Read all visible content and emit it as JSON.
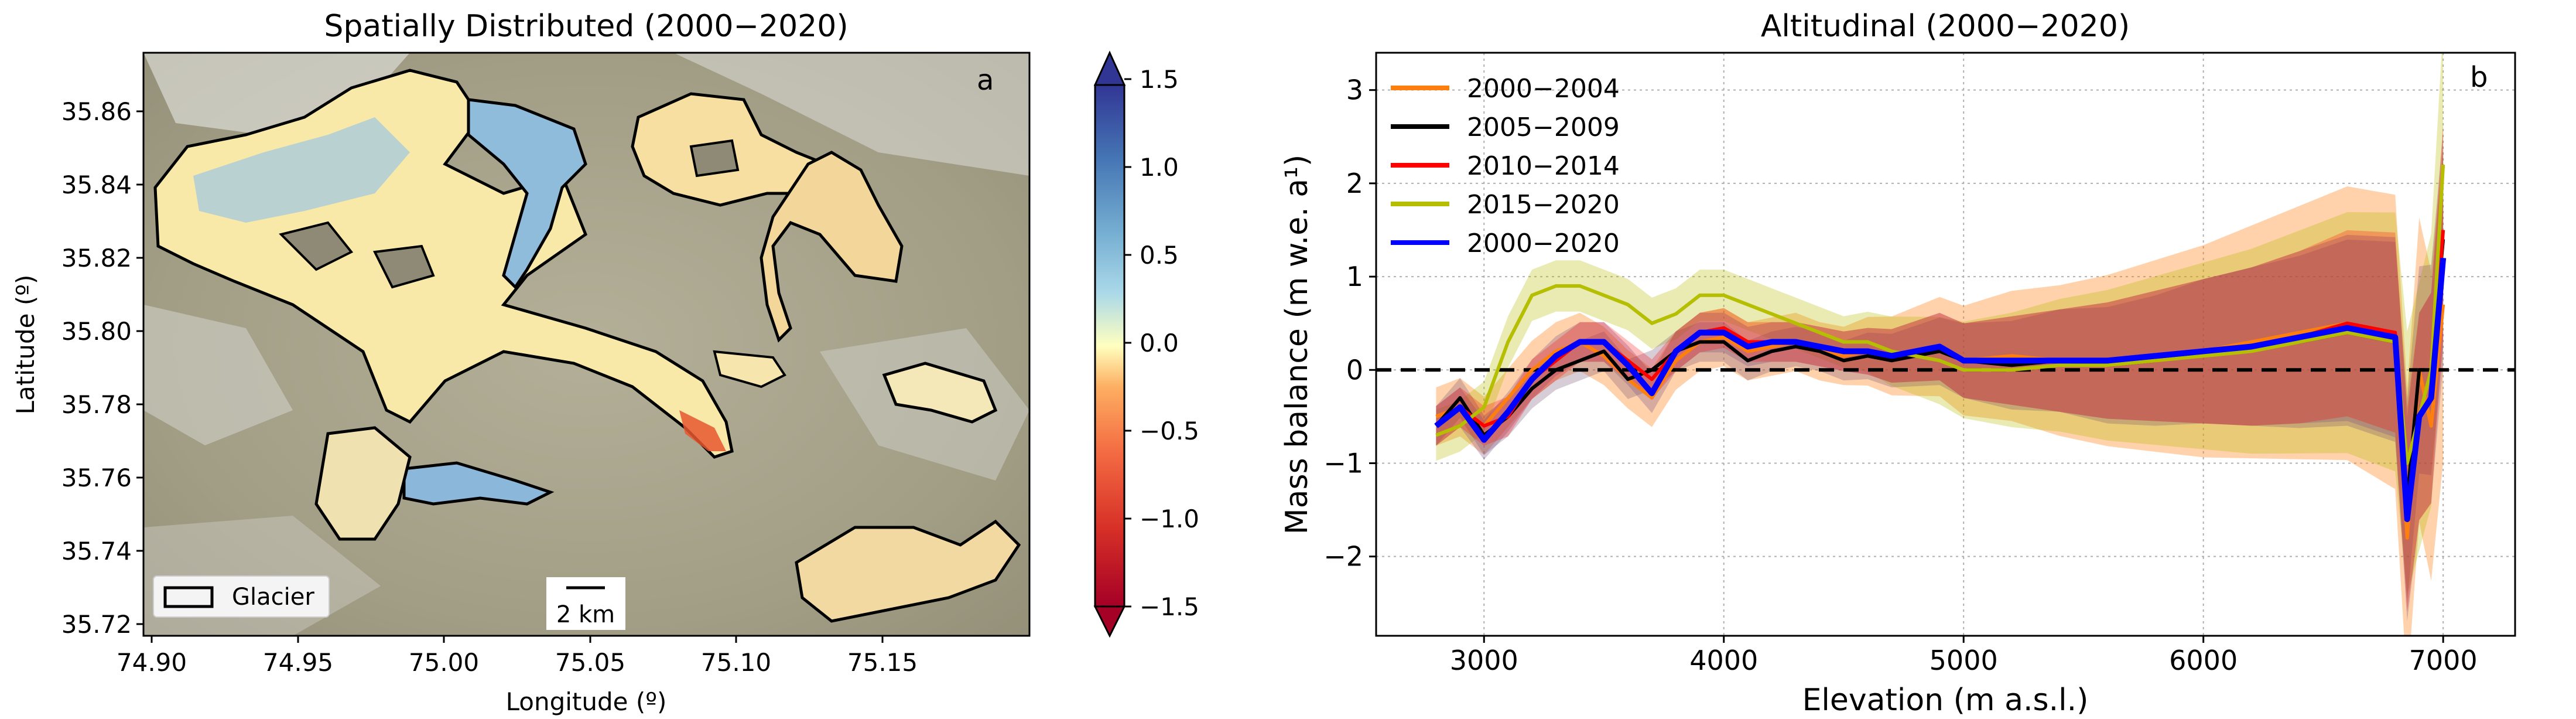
{
  "panel_a": {
    "title": "Spatially Distributed (2000−2020)",
    "panel_letter": "a",
    "xlabel": "Longitude (º)",
    "ylabel": "Latitude (º)",
    "xticks": [
      "74.90",
      "74.95",
      "75.00",
      "75.05",
      "75.10",
      "75.15"
    ],
    "yticks": [
      "35.86",
      "35.84",
      "35.82",
      "35.80",
      "35.78",
      "35.76",
      "35.74",
      "35.72"
    ],
    "legend_label": "Glacier",
    "scalebar_label": "2 km",
    "colorbar_ticks": [
      "1.5",
      "1.0",
      "0.5",
      "0.0",
      "−0.5",
      "−1.0",
      "−1.5"
    ],
    "colors": {
      "positive": "#313695",
      "zero": "#ffffbf",
      "negative": "#a50026",
      "terrain": "#a7a48e"
    }
  },
  "chart_data": {
    "type": "line",
    "title": "Altitudinal (2000−2020)",
    "panel_letter": "b",
    "xlabel": "Elevation (m a.s.l.)",
    "ylabel": "Mass balance (m w.e. a¹)",
    "xlim": [
      2550,
      7300
    ],
    "ylim": [
      -2.85,
      3.4
    ],
    "xticks": [
      "3000",
      "4000",
      "5000",
      "6000",
      "7000"
    ],
    "yticks": [
      "3",
      "2",
      "1",
      "0",
      "−1",
      "−2"
    ],
    "grid": true,
    "legend_position": "top-left",
    "zero_line": true,
    "x": [
      2800,
      2900,
      3000,
      3100,
      3200,
      3300,
      3400,
      3500,
      3600,
      3700,
      3800,
      3900,
      4000,
      4100,
      4200,
      4300,
      4400,
      4500,
      4600,
      4700,
      4800,
      4900,
      5000,
      5200,
      5400,
      5600,
      5800,
      6000,
      6200,
      6400,
      6600,
      6800,
      6850,
      6900,
      6950,
      7000
    ],
    "series": [
      {
        "name": "2000−2004",
        "color": "#ff7f0e",
        "values": [
          -0.5,
          -0.4,
          -0.6,
          -0.3,
          0.0,
          0.2,
          0.3,
          0.15,
          -0.1,
          -0.3,
          0.1,
          0.3,
          0.35,
          0.2,
          0.25,
          0.3,
          0.2,
          0.15,
          0.2,
          0.15,
          0.2,
          0.25,
          0.1,
          0.15,
          0.1,
          0.1,
          0.15,
          0.2,
          0.3,
          0.4,
          0.5,
          0.3,
          -1.8,
          0.0,
          -0.6,
          0.7
        ]
      },
      {
        "name": "2005−2009",
        "color": "#000000",
        "values": [
          -0.6,
          -0.3,
          -0.7,
          -0.5,
          -0.2,
          0.0,
          0.1,
          0.2,
          -0.1,
          0.0,
          0.2,
          0.3,
          0.3,
          0.1,
          0.2,
          0.25,
          0.2,
          0.1,
          0.15,
          0.1,
          0.15,
          0.2,
          0.1,
          0.05,
          0.1,
          0.05,
          0.1,
          0.2,
          0.25,
          0.3,
          0.4,
          0.3,
          -1.4,
          0.0,
          0.0,
          1.4
        ]
      },
      {
        "name": "2010−2014",
        "color": "#ff0000",
        "values": [
          -0.6,
          -0.4,
          -0.6,
          -0.5,
          -0.1,
          0.1,
          0.3,
          0.3,
          0.1,
          -0.1,
          0.2,
          0.4,
          0.45,
          0.3,
          0.3,
          0.3,
          0.25,
          0.2,
          0.2,
          0.15,
          0.2,
          0.25,
          0.1,
          0.1,
          0.1,
          0.1,
          0.15,
          0.2,
          0.25,
          0.35,
          0.5,
          0.4,
          -1.5,
          -0.5,
          -0.3,
          1.5
        ]
      },
      {
        "name": "2015−2020",
        "color": "#b5be00",
        "values": [
          -0.7,
          -0.6,
          -0.4,
          0.3,
          0.8,
          0.9,
          0.9,
          0.8,
          0.7,
          0.5,
          0.6,
          0.8,
          0.8,
          0.7,
          0.6,
          0.5,
          0.4,
          0.3,
          0.3,
          0.2,
          0.15,
          0.1,
          0.0,
          0.0,
          0.05,
          0.05,
          0.1,
          0.15,
          0.2,
          0.3,
          0.4,
          0.3,
          -1.0,
          -0.5,
          0.0,
          2.2
        ]
      },
      {
        "name": "2000−2020",
        "color": "#0000ff",
        "values": [
          -0.6,
          -0.4,
          -0.75,
          -0.45,
          -0.1,
          0.15,
          0.3,
          0.3,
          0.05,
          -0.25,
          0.2,
          0.4,
          0.4,
          0.25,
          0.3,
          0.3,
          0.25,
          0.2,
          0.2,
          0.15,
          0.2,
          0.25,
          0.1,
          0.1,
          0.1,
          0.1,
          0.15,
          0.2,
          0.25,
          0.35,
          0.45,
          0.35,
          -1.6,
          -0.5,
          -0.3,
          1.2
        ]
      }
    ]
  }
}
